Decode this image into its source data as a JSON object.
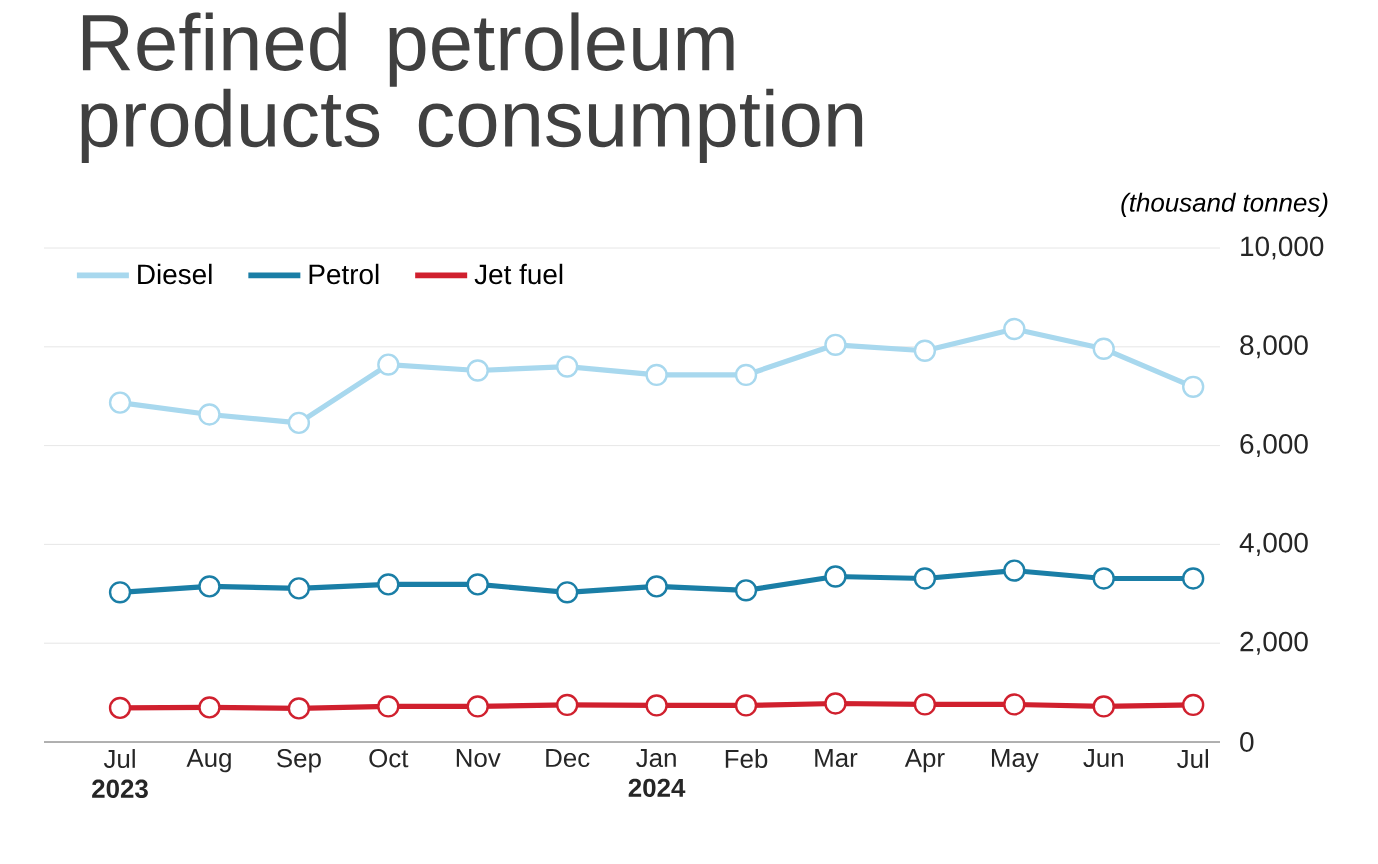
{
  "chart_data": {
    "type": "line",
    "title": "Refined petroleum products consumption",
    "ylabel": "(thousand tonnes)",
    "categories": [
      "Jul **2023**",
      "Aug",
      "Sep",
      "Oct",
      "Nov",
      "Dec",
      "Jan **2024**",
      "Feb",
      "Mar",
      "Apr",
      "May",
      "Jun",
      "Jul"
    ],
    "series": [
      {
        "name": "Diesel",
        "color": "#a8d8ee",
        "values": [
          6870,
          6630,
          6460,
          7640,
          7520,
          7600,
          7430,
          7430,
          8040,
          7920,
          8360,
          7960,
          7190
        ]
      },
      {
        "name": "Petrol",
        "color": "#1a7ea6",
        "values": [
          3030,
          3150,
          3110,
          3190,
          3190,
          3030,
          3150,
          3070,
          3350,
          3310,
          3470,
          3310,
          3310
        ]
      },
      {
        "name": "Jet fuel",
        "color": "#d0202e",
        "values": [
          690,
          700,
          680,
          720,
          720,
          750,
          740,
          740,
          780,
          760,
          760,
          720,
          750
        ]
      }
    ],
    "ylim": [
      0,
      10000
    ],
    "yticks": [
      {
        "value": 0,
        "label": "0"
      },
      {
        "value": 2000,
        "label": "2,000"
      },
      {
        "value": 4000,
        "label": "4,000"
      },
      {
        "value": 6000,
        "label": "6,000"
      },
      {
        "value": 8000,
        "label": "8,000"
      },
      {
        "value": 10000,
        "label": "10,000"
      }
    ],
    "grid": "y",
    "legend": "top left",
    "marker": "circle",
    "line_style": "solid"
  }
}
